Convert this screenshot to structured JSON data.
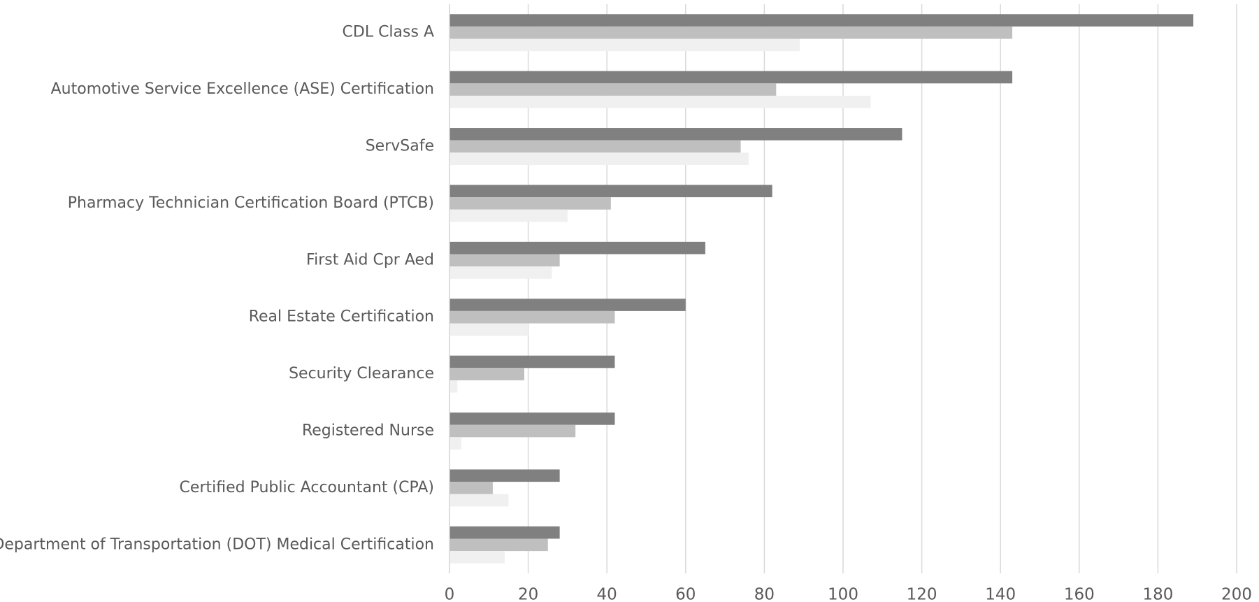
{
  "chart_data": {
    "type": "bar",
    "orientation": "horizontal",
    "categories": [
      "CDL Class A",
      "Automotive Service Excellence (ASE) Certification",
      "ServSafe",
      "Pharmacy Technician Certification Board (PTCB)",
      "First Aid Cpr Aed",
      "Real Estate Certification",
      "Security Clearance",
      "Registered Nurse",
      "Certified Public Accountant (CPA)",
      "Department of Transportation (DOT) Medical Certification"
    ],
    "series": [
      {
        "color": "#808080",
        "values": [
          189,
          143,
          115,
          82,
          65,
          60,
          42,
          42,
          28,
          28
        ]
      },
      {
        "color": "#bfbfbf",
        "values": [
          143,
          83,
          74,
          41,
          28,
          42,
          19,
          32,
          11,
          25
        ]
      },
      {
        "color": "#f0f0f0",
        "values": [
          89,
          107,
          76,
          30,
          26,
          20,
          2,
          3,
          15,
          14
        ]
      }
    ],
    "xlim": [
      0,
      200
    ],
    "xticks": [
      0,
      20,
      40,
      60,
      80,
      100,
      120,
      140,
      160,
      180,
      200
    ],
    "grid": true
  }
}
